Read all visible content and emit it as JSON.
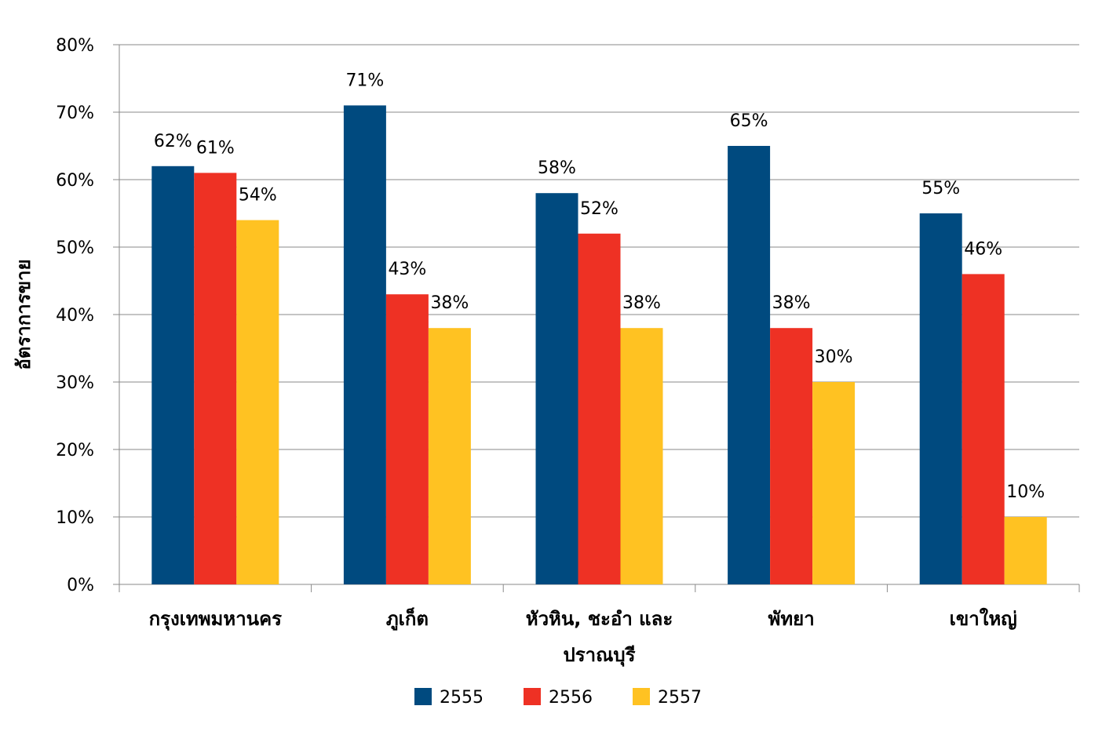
{
  "chart_data": {
    "type": "bar",
    "title": "",
    "xlabel": "",
    "ylabel": "อัตราการขาย",
    "ylim": [
      0,
      80
    ],
    "y_ticks": [
      0,
      10,
      20,
      30,
      40,
      50,
      60,
      70,
      80
    ],
    "y_tick_labels": [
      "0%",
      "10%",
      "20%",
      "30%",
      "40%",
      "50%",
      "60%",
      "70%",
      "80%"
    ],
    "categories": [
      [
        "กรุงเทพมหานคร"
      ],
      [
        "ภูเก็ต"
      ],
      [
        "หัวหิน, ชะอำ และ",
        "ปราณบุรี"
      ],
      [
        "พัทยา"
      ],
      [
        "เขาใหญ่"
      ]
    ],
    "series": [
      {
        "name": "2555",
        "color": "#004a7f",
        "values": [
          62,
          71,
          58,
          65,
          55
        ],
        "labels": [
          "62%",
          "71%",
          "58%",
          "65%",
          "55%"
        ]
      },
      {
        "name": "2556",
        "color": "#ee3124",
        "values": [
          61,
          43,
          52,
          38,
          46
        ],
        "labels": [
          "61%",
          "43%",
          "52%",
          "38%",
          "46%"
        ]
      },
      {
        "name": "2557",
        "color": "#ffc222",
        "values": [
          54,
          38,
          38,
          30,
          10
        ],
        "labels": [
          "54%",
          "38%",
          "38%",
          "30%",
          "10%"
        ]
      }
    ],
    "grid": true,
    "legend_position": "bottom"
  }
}
